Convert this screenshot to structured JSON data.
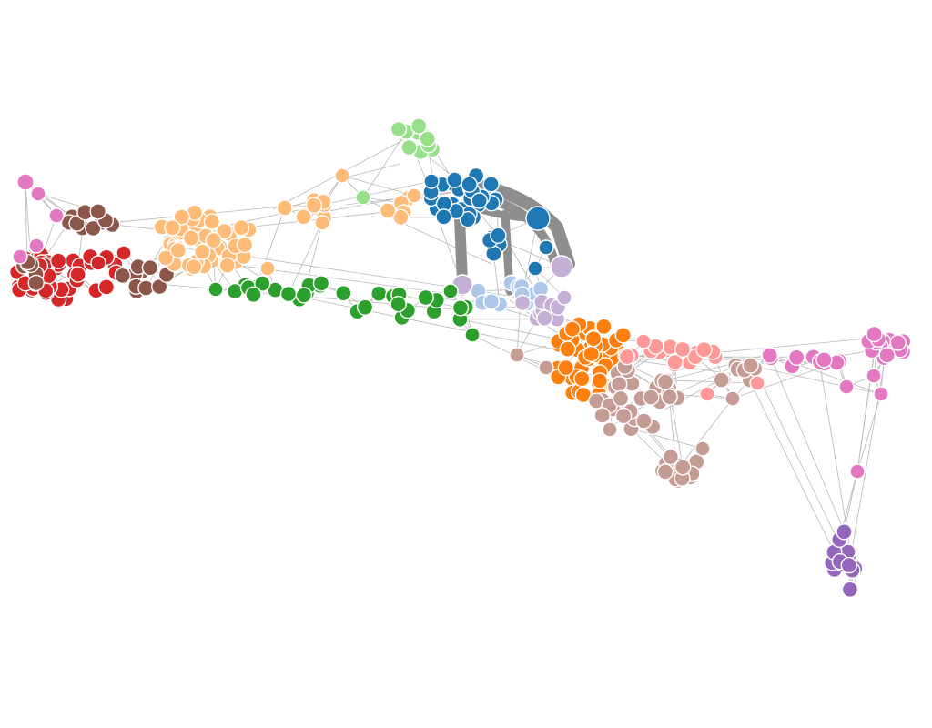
{
  "background_color": "#ffffff",
  "link_color": "#b8b8b8",
  "thick_link_color": "#8e8e8e",
  "node_stroke_color": "#ffffff",
  "groups": [
    {
      "name": "red",
      "color": "#d62728"
    },
    {
      "name": "brown",
      "color": "#8c564b"
    },
    {
      "name": "light-orange",
      "color": "#ffbb78"
    },
    {
      "name": "green",
      "color": "#2ca02c"
    },
    {
      "name": "light-green",
      "color": "#98df8a"
    },
    {
      "name": "blue",
      "color": "#1f77b4"
    },
    {
      "name": "light-blue",
      "color": "#aec7e8"
    },
    {
      "name": "lavender",
      "color": "#c5b0d5"
    },
    {
      "name": "orange",
      "color": "#ff7f0e"
    },
    {
      "name": "rosy-brown",
      "color": "#c49c94"
    },
    {
      "name": "pink",
      "color": "#ff9896"
    },
    {
      "name": "orchid",
      "color": "#e377c2"
    },
    {
      "name": "purple",
      "color": "#9467bd"
    }
  ]
}
